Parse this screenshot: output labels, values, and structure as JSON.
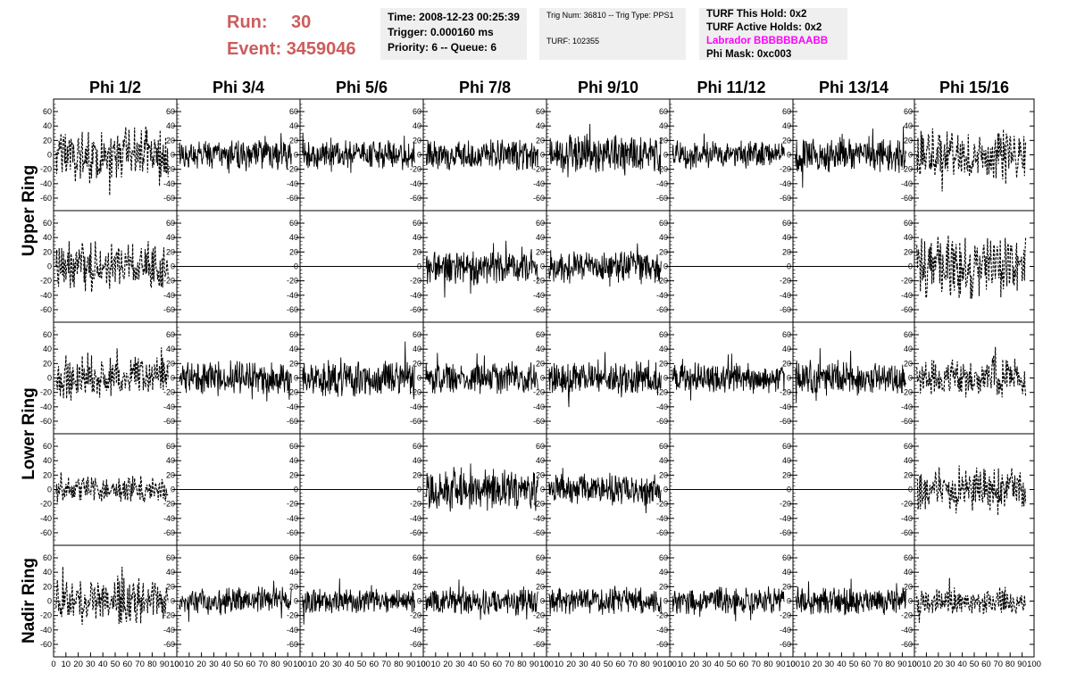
{
  "header": {
    "run_label": "Run:",
    "run_value": "30",
    "event_label": "Event:",
    "event_value": "3459046",
    "time": "Time: 2008-12-23 00:25:39",
    "trigger": "Trigger: 0.000160 ms",
    "priority": "Priority: 6 -- Queue: 6",
    "trig_num": "Trig Num: 36810 -- Trig Type: PPS1",
    "turf": "TURF: 102355",
    "turf_this_hold": "TURF This Hold: 0x2",
    "turf_active_holds": "TURF Active Holds: 0x2",
    "labrador": "Labrador BBBBBBAABB",
    "phi_mask": "Phi Mask: 0xc003",
    "run_color": "#cd5c5c",
    "labrador_color": "#ff00ff",
    "box_color": "#efefef"
  },
  "chart_data": {
    "type": "line",
    "columns": [
      "Phi 1/2",
      "Phi 3/4",
      "Phi 5/6",
      "Phi 7/8",
      "Phi 9/10",
      "Phi 11/12",
      "Phi 13/14",
      "Phi 15/16"
    ],
    "rows": [
      "Upper Ring",
      "Lower Ring",
      "Nadir Ring"
    ],
    "xlim": [
      0,
      100
    ],
    "ylim": [
      -70,
      70
    ],
    "x_ticks": [
      0,
      10,
      20,
      30,
      40,
      50,
      60,
      70,
      80,
      90,
      100
    ],
    "x_tick_labels": [
      "0",
      "10",
      "20",
      "30",
      "40",
      "50",
      "60",
      "70",
      "80",
      "90",
      "100"
    ],
    "y_ticks": [
      -60,
      -40,
      -20,
      0,
      20,
      40,
      60
    ],
    "y_tick_labels": [
      "-60",
      "-40",
      "-20",
      "0",
      "20",
      "40",
      "60"
    ],
    "panels": [
      [
        "dashed-28",
        "solid-16",
        "solid-16",
        "solid-16",
        "solid-22",
        "solid-14",
        "solid-18",
        "dashed-26"
      ],
      [
        "dashed-26",
        "flat",
        "flat",
        "solid-20",
        "solid-16",
        "flat",
        "flat",
        "dashed-34"
      ],
      [
        "dashed-22",
        "solid-18",
        "solid-20",
        "solid-16",
        "solid-18",
        "solid-16",
        "solid-18",
        "dashed-20"
      ],
      [
        "dashed-14",
        "flat",
        "flat",
        "solid-22",
        "solid-16",
        "flat",
        "flat",
        "dashed-24"
      ],
      [
        "dashed-24",
        "solid-14",
        "solid-14",
        "solid-14",
        "solid-14",
        "solid-14",
        "solid-14",
        "dashed-14"
      ]
    ],
    "series_note": "solid = one antenna polarisation, dashed = other; flat = no signal"
  }
}
